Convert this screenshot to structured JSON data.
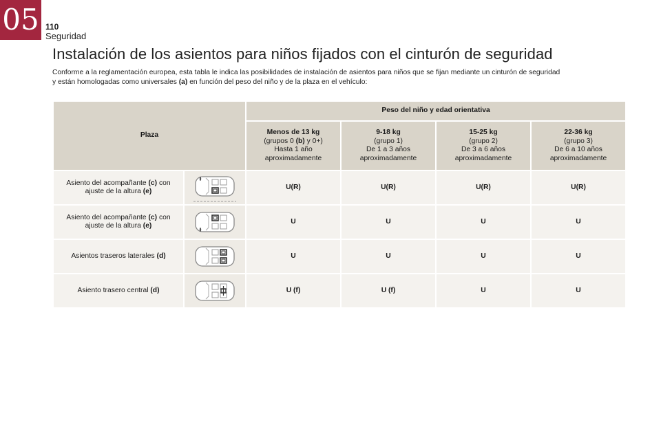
{
  "header": {
    "chapter": "05",
    "page_number": "110",
    "section": "Seguridad"
  },
  "title": "Instalación de los asientos para niños fijados con el cinturón de seguridad",
  "intro": {
    "line1": "Conforme a la reglamentación europea, esta tabla le indica las posibilidades de instalación de asientos para niños que se fijan mediante un cinturón de seguridad",
    "line2_pre": "y están homologadas como universales ",
    "line2_ref": "(a)",
    "line2_post": " en función del peso del niño y de la plaza en el vehículo:"
  },
  "table": {
    "plaza_header": "Plaza",
    "peso_header": "Peso del niño y edad orientativa",
    "columns": [
      {
        "weight": "Menos de 13 kg",
        "group_pre": "(grupos 0 ",
        "group_ref": "(b)",
        "group_post": " y 0+)",
        "age1": "Hasta 1 año",
        "age2": "aproximadamente"
      },
      {
        "weight": "9-18 kg",
        "group_pre": "(grupo 1)",
        "group_ref": "",
        "group_post": "",
        "age1": "De 1 a 3 años",
        "age2": "aproximadamente"
      },
      {
        "weight": "15-25 kg",
        "group_pre": "(grupo 2)",
        "group_ref": "",
        "group_post": "",
        "age1": "De 3 a 6 años",
        "age2": "aproximadamente"
      },
      {
        "weight": "22-36 kg",
        "group_pre": "(grupo 3)",
        "group_ref": "",
        "group_post": "",
        "age1": "De 6 a 10 años",
        "age2": "aproximadamente"
      }
    ],
    "rows": [
      {
        "label_pre": "Asiento del acompañante ",
        "label_ref": "(c)",
        "label_mid": " con",
        "label_line2": "ajuste de la altura ",
        "label_ref2": "(e)",
        "values": [
          "U(R)",
          "U(R)",
          "U(R)",
          "U(R)"
        ]
      },
      {
        "label_pre": "Asiento del acompañante ",
        "label_ref": "(c)",
        "label_mid": " con",
        "label_line2": "ajuste de la altura ",
        "label_ref2": "(e)",
        "values": [
          "U",
          "U",
          "U",
          "U"
        ]
      },
      {
        "label_pre": "Asientos traseros laterales ",
        "label_ref": "(d)",
        "label_mid": "",
        "label_line2": "",
        "label_ref2": "",
        "values": [
          "U",
          "U",
          "U",
          "U"
        ]
      },
      {
        "label_pre": "Asiento trasero central ",
        "label_ref": "(d)",
        "label_mid": "",
        "label_line2": "",
        "label_ref2": "",
        "values": [
          "U (f)",
          "U (f)",
          "U",
          "U"
        ]
      }
    ]
  },
  "colors": {
    "accent": "#a3263f",
    "header_bg": "#d9d4c9",
    "cell_bg": "#f4f2ee"
  }
}
